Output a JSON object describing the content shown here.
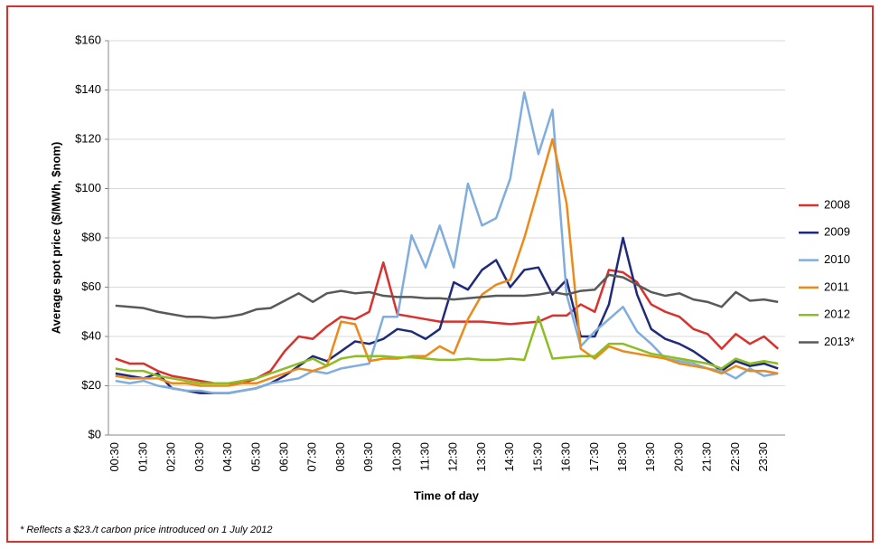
{
  "chart_data": {
    "type": "line",
    "y_label": "Average spot price ($/MWh, $nom)",
    "x_label": "Time of day",
    "footnote": "* Reflects a $23./t carbon price introduced on 1 July 2012",
    "categories": [
      "00:30",
      null,
      "01:30",
      null,
      "02:30",
      null,
      "03:30",
      null,
      "04:30",
      null,
      "05:30",
      null,
      "06:30",
      null,
      "07:30",
      null,
      "08:30",
      null,
      "09:30",
      null,
      "10:30",
      null,
      "11:30",
      null,
      "12:30",
      null,
      "13:30",
      null,
      "14:30",
      null,
      "15:30",
      null,
      "16:30",
      null,
      "17:30",
      null,
      "18:30",
      null,
      "19:30",
      null,
      "20:30",
      null,
      "21:30",
      null,
      "22:30",
      null,
      "23:30",
      null
    ],
    "ylim": [
      0,
      160
    ],
    "yticks": [
      {
        "value": 0,
        "label": "$0"
      },
      {
        "value": 20,
        "label": "$20"
      },
      {
        "value": 40,
        "label": "$40"
      },
      {
        "value": 60,
        "label": "$60"
      },
      {
        "value": 80,
        "label": "$80"
      },
      {
        "value": 100,
        "label": "$100"
      },
      {
        "value": 120,
        "label": "$120"
      },
      {
        "value": 140,
        "label": "$140"
      },
      {
        "value": 160,
        "label": "$160"
      }
    ],
    "grid": true,
    "legend": "right",
    "series": [
      {
        "name": "2008",
        "color": "#d9312b",
        "values": [
          31,
          29,
          29,
          26,
          24,
          23,
          22,
          21,
          21,
          21,
          23,
          26,
          34,
          40,
          39,
          44,
          48,
          47,
          50,
          70,
          49,
          48,
          47,
          46,
          46,
          46,
          46,
          45.5,
          45,
          45.5,
          46,
          48.5,
          48.5,
          53,
          50,
          67,
          66,
          62,
          53,
          50,
          48,
          43,
          41,
          35,
          41,
          37,
          40,
          35
        ]
      },
      {
        "name": "2009",
        "color": "#1f2a7a",
        "values": [
          25,
          24,
          23,
          25,
          19,
          18,
          17,
          17,
          17,
          18,
          19,
          21,
          24,
          28,
          32,
          30,
          34,
          38,
          37,
          39,
          43,
          42,
          39,
          43,
          62,
          59,
          67,
          71,
          60,
          67,
          68,
          57,
          63,
          40,
          40,
          53,
          80,
          57,
          43,
          39,
          37,
          34,
          30,
          26,
          30,
          28,
          29,
          27
        ]
      },
      {
        "name": "2010",
        "color": "#7fadde",
        "values": [
          22,
          21,
          22,
          20,
          19,
          18,
          18,
          17,
          17,
          18,
          19,
          21,
          22,
          23,
          26,
          25,
          27,
          28,
          29,
          48,
          48,
          81,
          68,
          85,
          68,
          102,
          85,
          88,
          104,
          139,
          114,
          132,
          57,
          36,
          42,
          47,
          52,
          42,
          37,
          31,
          30,
          29,
          27,
          26,
          23,
          27,
          24,
          25
        ]
      },
      {
        "name": "2011",
        "color": "#ec8a19",
        "values": [
          24,
          23,
          23,
          23,
          21,
          21,
          20,
          20,
          20,
          21,
          21,
          23,
          25,
          27,
          26,
          28,
          46,
          45,
          30,
          31,
          31,
          32,
          32,
          36,
          33,
          47,
          57,
          61,
          63,
          80,
          100,
          120,
          94,
          35,
          31,
          36,
          34,
          33,
          32,
          31,
          29,
          28,
          27,
          25,
          28,
          26,
          26,
          25
        ]
      },
      {
        "name": "2012",
        "color": "#8cbd22",
        "values": [
          27,
          26,
          26,
          24,
          23,
          22,
          21,
          21,
          21,
          22,
          23,
          25,
          27,
          29,
          31,
          28,
          31,
          32,
          32,
          32,
          31.5,
          31.5,
          31,
          30.5,
          30.5,
          31,
          30.5,
          30.5,
          31,
          30.5,
          48,
          31,
          31.5,
          32,
          32,
          37,
          37,
          35,
          33,
          32,
          31,
          30,
          29,
          27,
          31,
          29,
          30,
          29
        ]
      },
      {
        "name": "2013*",
        "color": "#595959",
        "values": [
          52.5,
          52,
          51.5,
          50,
          49,
          48,
          48,
          47.5,
          48,
          49,
          51,
          51.5,
          54.5,
          57.5,
          54,
          57.5,
          58.5,
          57.5,
          58,
          56.5,
          56,
          56,
          55.5,
          55.5,
          55,
          55.5,
          56,
          56.5,
          56.5,
          56.5,
          57,
          58,
          57,
          58.5,
          59,
          65,
          64,
          61,
          58,
          56.5,
          57.5,
          55,
          54,
          52,
          58,
          54.5,
          55,
          54
        ]
      }
    ]
  }
}
